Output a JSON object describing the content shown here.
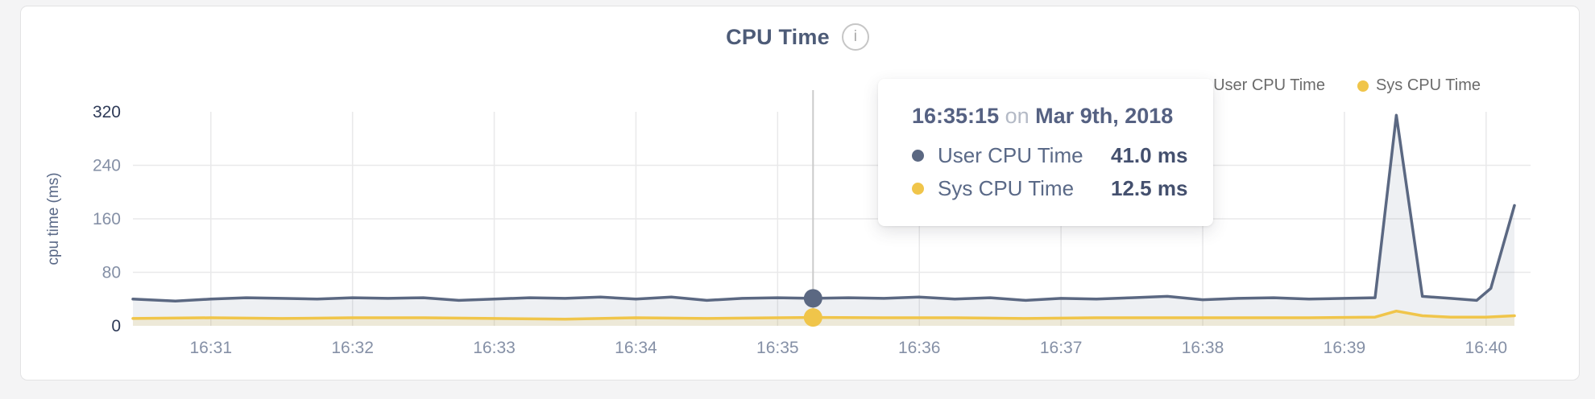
{
  "header": {
    "title": "CPU Time",
    "info_icon_glyph": "i"
  },
  "legend": {
    "items": [
      {
        "label": "User CPU Time",
        "color": "#5b6882"
      },
      {
        "label": "Sys CPU Time",
        "color": "#f0c54a"
      }
    ]
  },
  "tooltip": {
    "time": "16:35:15",
    "connector": "on",
    "date": "Mar 9th, 2018",
    "rows": [
      {
        "label": "User CPU Time",
        "value": "41.0 ms"
      },
      {
        "label": "Sys CPU Time",
        "value": "12.5 ms"
      }
    ]
  },
  "chart_data": {
    "type": "line",
    "title": "CPU Time",
    "xlabel": "",
    "ylabel": "cpu time (ms)",
    "ylim": [
      0,
      320
    ],
    "y_ticks": [
      0,
      80,
      160,
      240,
      320
    ],
    "grid_y": [
      80,
      160,
      240
    ],
    "x_ticks": [
      "16:31",
      "16:32",
      "16:33",
      "16:34",
      "16:35",
      "16:36",
      "16:37",
      "16:38",
      "16:39",
      "16:40"
    ],
    "x_domain": [
      "16:30:27",
      "16:40:12"
    ],
    "grid": true,
    "legend_position": "top-right",
    "hover": {
      "time": "16:35:15",
      "date": "Mar 9th, 2018",
      "user_ms": 41.0,
      "sys_ms": 12.5
    },
    "series": [
      {
        "name": "User CPU Time",
        "color": "#5b6882",
        "fill": "rgba(93,106,136,0.10)",
        "points": [
          [
            "16:30:27",
            40
          ],
          [
            "16:30:45",
            37
          ],
          [
            "16:31:00",
            40
          ],
          [
            "16:31:15",
            42
          ],
          [
            "16:31:30",
            41
          ],
          [
            "16:31:45",
            40
          ],
          [
            "16:32:00",
            42
          ],
          [
            "16:32:15",
            41
          ],
          [
            "16:32:30",
            42
          ],
          [
            "16:32:45",
            38
          ],
          [
            "16:33:00",
            40
          ],
          [
            "16:33:15",
            42
          ],
          [
            "16:33:30",
            41
          ],
          [
            "16:33:45",
            43
          ],
          [
            "16:34:00",
            40
          ],
          [
            "16:34:15",
            43
          ],
          [
            "16:34:30",
            38
          ],
          [
            "16:34:45",
            41
          ],
          [
            "16:35:00",
            42
          ],
          [
            "16:35:15",
            41
          ],
          [
            "16:35:30",
            42
          ],
          [
            "16:35:45",
            41
          ],
          [
            "16:36:00",
            43
          ],
          [
            "16:36:15",
            40
          ],
          [
            "16:36:30",
            42
          ],
          [
            "16:36:45",
            38
          ],
          [
            "16:37:00",
            41
          ],
          [
            "16:37:15",
            40
          ],
          [
            "16:37:30",
            42
          ],
          [
            "16:37:45",
            44
          ],
          [
            "16:38:00",
            39
          ],
          [
            "16:38:15",
            41
          ],
          [
            "16:38:30",
            42
          ],
          [
            "16:38:45",
            40
          ],
          [
            "16:39:00",
            41
          ],
          [
            "16:39:13",
            42
          ],
          [
            "16:39:22",
            315
          ],
          [
            "16:39:33",
            44
          ],
          [
            "16:39:45",
            41
          ],
          [
            "16:39:56",
            38
          ],
          [
            "16:40:02",
            56
          ],
          [
            "16:40:12",
            180
          ]
        ]
      },
      {
        "name": "Sys CPU Time",
        "color": "#f0c54a",
        "fill": "rgba(238,198,73,0.16)",
        "points": [
          [
            "16:30:27",
            11
          ],
          [
            "16:31:00",
            12
          ],
          [
            "16:31:30",
            11
          ],
          [
            "16:32:00",
            12
          ],
          [
            "16:32:30",
            12
          ],
          [
            "16:33:00",
            11
          ],
          [
            "16:33:30",
            10
          ],
          [
            "16:34:00",
            12
          ],
          [
            "16:34:30",
            11
          ],
          [
            "16:35:00",
            12
          ],
          [
            "16:35:15",
            12.5
          ],
          [
            "16:35:45",
            12
          ],
          [
            "16:36:15",
            12
          ],
          [
            "16:36:45",
            11
          ],
          [
            "16:37:15",
            12
          ],
          [
            "16:37:45",
            12
          ],
          [
            "16:38:15",
            12
          ],
          [
            "16:38:45",
            12
          ],
          [
            "16:39:13",
            13
          ],
          [
            "16:39:22",
            22
          ],
          [
            "16:39:33",
            15
          ],
          [
            "16:39:45",
            13
          ],
          [
            "16:40:00",
            13
          ],
          [
            "16:40:12",
            15
          ]
        ]
      }
    ]
  }
}
